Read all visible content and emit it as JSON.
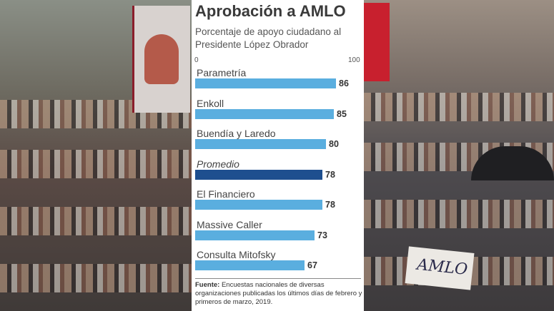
{
  "chart_data": {
    "type": "bar",
    "orientation": "horizontal",
    "title": "Aprobación a AMLO",
    "subtitle": "Porcentaje de apoyo ciudadano al Presidente López Obrador",
    "categories": [
      "Parametría",
      "Enkoll",
      "Buendía y Laredo",
      "Promedio",
      "El Financiero",
      "Massive Caller",
      "Consulta Mitofsky"
    ],
    "values": [
      86,
      85,
      80,
      78,
      78,
      73,
      67
    ],
    "highlight": "Promedio",
    "xlim": [
      0,
      100
    ],
    "ticks": [
      "0",
      "100"
    ],
    "colors": {
      "bar": "#5aaedf",
      "highlight": "#1e4f8f"
    },
    "source_label": "Fuente:",
    "source_text": "Encuestas nacionales de diversas organizaciones publicadas los últimos días de febrero y primeros de marzo, 2019."
  },
  "photo": {
    "sign_text": "AMLO"
  }
}
